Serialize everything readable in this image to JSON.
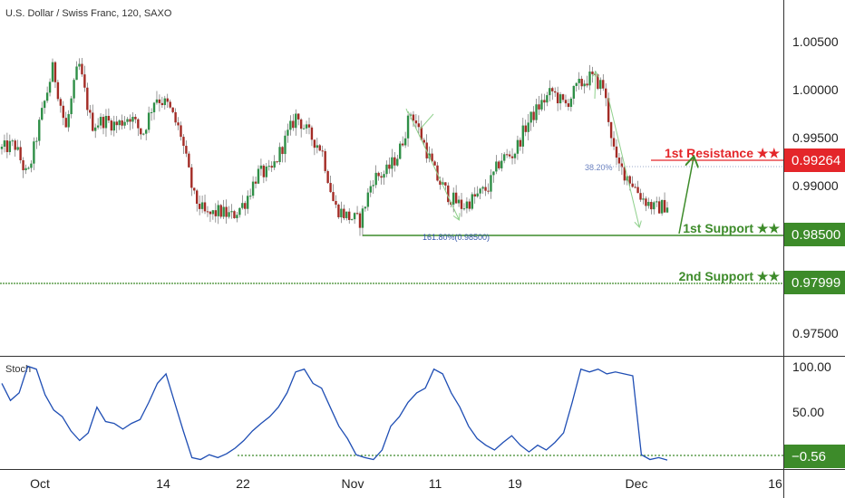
{
  "header": {
    "title": "U.S. Dollar / Swiss Franc, 120, SAXO"
  },
  "price_axis": {
    "ticks": [
      "1.00500",
      "1.00000",
      "0.99500",
      "0.99000",
      "0.97500"
    ]
  },
  "stoch_axis": {
    "ticks": [
      "100.00",
      "50.00"
    ]
  },
  "stoch": {
    "label": "Stoch",
    "current_value": "−0.56"
  },
  "time_axis": {
    "ticks": [
      "Oct",
      "14",
      "22",
      "Nov",
      "11",
      "19",
      "Dec",
      "16"
    ]
  },
  "levels": {
    "resistance1": {
      "label": "1st Resistance ★★",
      "price_tag": "0.99264",
      "color": "#e4262a"
    },
    "support1": {
      "label": "1st Support ★★",
      "price_tag": "0.98500",
      "color": "#3d8b2a"
    },
    "support2": {
      "label": "2nd Support ★★",
      "price_tag": "0.97999",
      "color": "#3d8b2a"
    }
  },
  "fib_labels": {
    "retracement": "38.20%",
    "extension": "161.80%(0.98500)"
  },
  "colors": {
    "up_candle": "#2f8f47",
    "down_candle": "#a32b25",
    "stoch_line": "#1f4eb4",
    "arrow": "#8fd08c",
    "resistance": "#e4262a",
    "support": "#3d8b2a"
  },
  "chart_data": [
    {
      "type": "candlestick",
      "title": "U.S. Dollar / Swiss Franc, 120, SAXO",
      "ylim": [
        0.9715,
        1.0085
      ],
      "x_ticks": [
        "Oct",
        "14",
        "22",
        "Nov",
        "11",
        "19",
        "Dec",
        "16"
      ],
      "path_points": [
        0.993,
        0.9935,
        0.99,
        0.996,
        1.0015,
        0.995,
        1.002,
        0.9955,
        0.996,
        0.9955,
        0.9965,
        0.9945,
        0.9985,
        0.9975,
        0.9945,
        0.988,
        0.986,
        0.9865,
        0.986,
        0.9875,
        0.9905,
        0.9905,
        0.9935,
        0.9965,
        0.9945,
        0.993,
        0.987,
        0.986,
        0.9855,
        0.99,
        0.9905,
        0.9925,
        0.997,
        0.9935,
        0.99,
        0.988,
        0.987,
        0.988,
        0.989,
        0.992,
        0.9925,
        0.9955,
        0.9975,
        0.999,
        0.9975,
        0.9995,
        1.0005,
        0.9995,
        0.9915,
        0.99,
        0.988,
        0.9868,
        0.9872
      ],
      "levels": [
        {
          "name": "1st Resistance ★★",
          "value": 0.99264
        },
        {
          "name": "1st Support ★★",
          "value": 0.985
        },
        {
          "name": "2nd Support ★★",
          "value": 0.97999
        }
      ],
      "annotations": [
        "38.20%",
        "161.80%(0.98500)"
      ]
    },
    {
      "type": "line",
      "title": "Stoch",
      "ylim": [
        -10,
        108
      ],
      "y_ticks": [
        100.0,
        50.0
      ],
      "series": [
        {
          "name": "Stoch",
          "values": [
            80,
            62,
            70,
            98,
            95,
            68,
            52,
            45,
            30,
            20,
            28,
            55,
            40,
            38,
            32,
            38,
            42,
            60,
            80,
            90,
            60,
            30,
            2,
            0,
            5,
            2,
            6,
            12,
            20,
            30,
            38,
            45,
            55,
            70,
            92,
            95,
            80,
            75,
            55,
            35,
            22,
            5,
            2,
            0,
            10,
            35,
            45,
            60,
            70,
            75,
            95,
            90,
            70,
            55,
            35,
            22,
            15,
            10,
            18,
            25,
            15,
            8,
            15,
            10,
            18,
            28,
            60,
            95,
            92,
            95,
            90,
            92,
            90,
            88,
            5,
            0,
            2,
            -0.56
          ]
        }
      ],
      "reference_lines": [
        0
      ],
      "current_value": -0.56
    }
  ]
}
